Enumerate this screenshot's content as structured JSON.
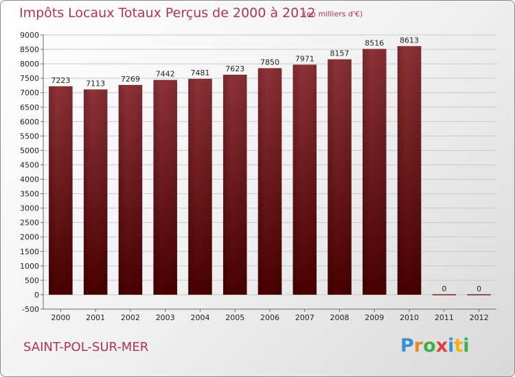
{
  "chart_data": {
    "type": "bar",
    "title": "Impôts Locaux Totaux Perçus de 2000 à 2012",
    "subtitle": "(en milliers d'€)",
    "categories": [
      "2000",
      "2001",
      "2002",
      "2003",
      "2004",
      "2005",
      "2006",
      "2007",
      "2008",
      "2009",
      "2010",
      "2011",
      "2012"
    ],
    "values": [
      7223,
      7113,
      7269,
      7442,
      7481,
      7623,
      7850,
      7971,
      8157,
      8516,
      8613,
      0,
      0
    ],
    "ylim": [
      -500,
      9000
    ],
    "yticks": [
      -500,
      0,
      500,
      1000,
      1500,
      2000,
      2500,
      3000,
      3500,
      4000,
      4500,
      5000,
      5500,
      6000,
      6500,
      7000,
      7500,
      8000,
      8500,
      9000
    ],
    "xlabel": "",
    "ylabel": "",
    "grid": true,
    "bar_color": "#7a1a1f"
  },
  "footer": {
    "town": "SAINT-POL-SUR-MER",
    "logo_letters": [
      {
        "char": "P",
        "color": "#3a8fd6"
      },
      {
        "char": "r",
        "color": "#e8892a"
      },
      {
        "char": "o",
        "color": "#3bb04a"
      },
      {
        "char": "x",
        "color": "#e23c3c"
      },
      {
        "char": "i",
        "color": "#3a8fd6"
      },
      {
        "char": "t",
        "color": "#f2b316"
      },
      {
        "char": "i",
        "color": "#3bb04a"
      }
    ]
  }
}
